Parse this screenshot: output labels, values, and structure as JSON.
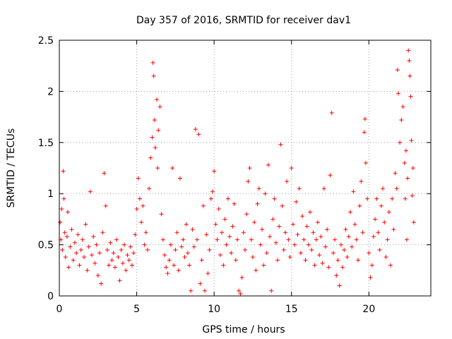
{
  "chart_data": {
    "type": "scatter",
    "title": "Day 357 of 2016, SRMTID for receiver dav1",
    "xlabel": "GPS time / hours",
    "ylabel": "SRMTID / TECUs",
    "xlim": [
      0,
      24
    ],
    "ylim": [
      0,
      2.5
    ],
    "xticks": [
      0,
      5,
      10,
      15,
      20
    ],
    "xtick_labels": [
      "0",
      "5",
      "10",
      "15",
      "20"
    ],
    "yticks": [
      0,
      0.5,
      1,
      1.5,
      2,
      2.5
    ],
    "ytick_labels": [
      "0",
      "0.5",
      "1",
      "1.5",
      "2",
      "2.5"
    ],
    "grid": true,
    "marker": "+",
    "color": "#ff0000",
    "series": [
      {
        "name": "SRMTID",
        "points": [
          [
            0.05,
            0.72
          ],
          [
            0.1,
            0.55
          ],
          [
            0.15,
            0.85
          ],
          [
            0.2,
            0.45
          ],
          [
            0.25,
            1.22
          ],
          [
            0.3,
            0.95
          ],
          [
            0.35,
            0.62
          ],
          [
            0.4,
            0.38
          ],
          [
            0.5,
            0.58
          ],
          [
            0.55,
            0.82
          ],
          [
            0.6,
            0.28
          ],
          [
            0.7,
            0.48
          ],
          [
            0.8,
            0.65
          ],
          [
            0.9,
            0.35
          ],
          [
            1.0,
            0.52
          ],
          [
            1.1,
            0.42
          ],
          [
            1.2,
            0.6
          ],
          [
            1.3,
            0.3
          ],
          [
            1.4,
            0.45
          ],
          [
            1.5,
            0.55
          ],
          [
            1.6,
            0.38
          ],
          [
            1.7,
            0.7
          ],
          [
            1.8,
            0.25
          ],
          [
            1.9,
            0.48
          ],
          [
            2.0,
            1.02
          ],
          [
            2.1,
            0.4
          ],
          [
            2.2,
            0.58
          ],
          [
            2.3,
            0.32
          ],
          [
            2.4,
            0.5
          ],
          [
            2.5,
            0.2
          ],
          [
            2.6,
            0.42
          ],
          [
            2.7,
            0.12
          ],
          [
            2.8,
            0.62
          ],
          [
            2.9,
            1.2
          ],
          [
            3.0,
            0.88
          ],
          [
            3.1,
            0.45
          ],
          [
            3.2,
            0.3
          ],
          [
            3.3,
            0.52
          ],
          [
            3.4,
            0.35
          ],
          [
            3.5,
            0.42
          ],
          [
            3.6,
            0.28
          ],
          [
            3.7,
            0.55
          ],
          [
            3.8,
            0.38
          ],
          [
            3.9,
            0.15
          ],
          [
            4.0,
            0.45
          ],
          [
            4.1,
            0.32
          ],
          [
            4.2,
            0.5
          ],
          [
            4.3,
            0.25
          ],
          [
            4.4,
            0.4
          ],
          [
            4.5,
            0.35
          ],
          [
            4.6,
            0.48
          ],
          [
            4.7,
            0.3
          ],
          [
            4.8,
            0.42
          ],
          [
            4.9,
            0.6
          ],
          [
            5.0,
            0.85
          ],
          [
            5.1,
            1.15
          ],
          [
            5.2,
            0.95
          ],
          [
            5.3,
            0.72
          ],
          [
            5.4,
            0.88
          ],
          [
            5.5,
            0.5
          ],
          [
            5.6,
            0.62
          ],
          [
            5.7,
            0.45
          ],
          [
            5.8,
            1.05
          ],
          [
            5.9,
            1.35
          ],
          [
            6.0,
            1.55
          ],
          [
            6.05,
            2.28
          ],
          [
            6.1,
            2.15
          ],
          [
            6.15,
            1.72
          ],
          [
            6.2,
            1.45
          ],
          [
            6.3,
            1.92
          ],
          [
            6.35,
            1.25
          ],
          [
            6.4,
            1.62
          ],
          [
            6.5,
            1.85
          ],
          [
            6.6,
            0.8
          ],
          [
            6.7,
            0.55
          ],
          [
            6.8,
            0.4
          ],
          [
            6.9,
            0.28
          ],
          [
            7.0,
            0.22
          ],
          [
            7.1,
            0.35
          ],
          [
            7.2,
            0.5
          ],
          [
            7.3,
            1.25
          ],
          [
            7.4,
            0.3
          ],
          [
            7.5,
            0.45
          ],
          [
            7.6,
            0.62
          ],
          [
            7.7,
            0.25
          ],
          [
            7.8,
            1.15
          ],
          [
            7.9,
            0.48
          ],
          [
            8.0,
            0.55
          ],
          [
            8.1,
            0.38
          ],
          [
            8.2,
            0.7
          ],
          [
            8.3,
            0.42
          ],
          [
            8.4,
            0.3
          ],
          [
            8.5,
            0.05
          ],
          [
            8.6,
            0.65
          ],
          [
            8.7,
            0.48
          ],
          [
            8.8,
            1.63
          ],
          [
            8.9,
            0.55
          ],
          [
            9.0,
            1.58
          ],
          [
            9.1,
            0.12
          ],
          [
            9.2,
            0.35
          ],
          [
            9.3,
            0.88
          ],
          [
            9.4,
            0.05
          ],
          [
            9.5,
            0.6
          ],
          [
            9.6,
            0.22
          ],
          [
            9.7,
            0.45
          ],
          [
            9.8,
            0.95
          ],
          [
            9.9,
            1.02
          ],
          [
            10.0,
            1.22
          ],
          [
            10.1,
            0.7
          ],
          [
            10.2,
            0.55
          ],
          [
            10.3,
            0.85
          ],
          [
            10.4,
            0.4
          ],
          [
            10.5,
            0.62
          ],
          [
            10.6,
            0.3
          ],
          [
            10.7,
            0.75
          ],
          [
            10.8,
            0.5
          ],
          [
            10.9,
            0.95
          ],
          [
            11.0,
            0.58
          ],
          [
            11.1,
            0.42
          ],
          [
            11.2,
            0.68
          ],
          [
            11.3,
            0.9
          ],
          [
            11.4,
            0.35
          ],
          [
            11.5,
            0.55
          ],
          [
            11.6,
            0.05
          ],
          [
            11.7,
            0.02
          ],
          [
            11.8,
            0.18
          ],
          [
            11.9,
            0.62
          ],
          [
            12.0,
            0.45
          ],
          [
            12.1,
            0.8
          ],
          [
            12.2,
            1.12
          ],
          [
            12.3,
            1.25
          ],
          [
            12.4,
            0.55
          ],
          [
            12.5,
            0.38
          ],
          [
            12.6,
            0.72
          ],
          [
            12.7,
            0.25
          ],
          [
            12.8,
            0.9
          ],
          [
            12.9,
            1.05
          ],
          [
            13.0,
            0.5
          ],
          [
            13.1,
            0.65
          ],
          [
            13.2,
            0.3
          ],
          [
            13.3,
            1.0
          ],
          [
            13.4,
            0.42
          ],
          [
            13.5,
            1.28
          ],
          [
            13.6,
            0.58
          ],
          [
            13.7,
            0.05
          ],
          [
            13.8,
            0.75
          ],
          [
            13.9,
            0.95
          ],
          [
            14.0,
            0.52
          ],
          [
            14.1,
            0.35
          ],
          [
            14.2,
            0.68
          ],
          [
            14.3,
            1.48
          ],
          [
            14.4,
            0.88
          ],
          [
            14.5,
            0.45
          ],
          [
            14.6,
            0.62
          ],
          [
            14.7,
            1.12
          ],
          [
            14.8,
            0.55
          ],
          [
            14.9,
            0.38
          ],
          [
            15.0,
            1.25
          ],
          [
            15.1,
            0.7
          ],
          [
            15.2,
            0.5
          ],
          [
            15.3,
            0.92
          ],
          [
            15.4,
            0.6
          ],
          [
            15.5,
            1.05
          ],
          [
            15.6,
            0.42
          ],
          [
            15.7,
            0.78
          ],
          [
            15.8,
            0.55
          ],
          [
            15.9,
            0.35
          ],
          [
            16.0,
            0.68
          ],
          [
            16.1,
            0.5
          ],
          [
            16.2,
            0.82
          ],
          [
            16.3,
            0.45
          ],
          [
            16.4,
            0.62
          ],
          [
            16.5,
            0.3
          ],
          [
            16.6,
            0.55
          ],
          [
            16.7,
            0.72
          ],
          [
            16.8,
            0.4
          ],
          [
            16.9,
            0.58
          ],
          [
            17.0,
            0.32
          ],
          [
            17.1,
            1.05
          ],
          [
            17.2,
            0.48
          ],
          [
            17.3,
            0.65
          ],
          [
            17.4,
            0.28
          ],
          [
            17.5,
            1.18
          ],
          [
            17.6,
            1.79
          ],
          [
            17.7,
            0.42
          ],
          [
            17.8,
            0.55
          ],
          [
            17.9,
            0.2
          ],
          [
            18.0,
            0.35
          ],
          [
            18.1,
            0.1
          ],
          [
            18.2,
            0.5
          ],
          [
            18.3,
            0.28
          ],
          [
            18.4,
            0.45
          ],
          [
            18.5,
            0.65
          ],
          [
            18.6,
            0.38
          ],
          [
            18.7,
            0.58
          ],
          [
            18.8,
            0.82
          ],
          [
            18.9,
            0.48
          ],
          [
            19.0,
            1.02
          ],
          [
            19.1,
            0.7
          ],
          [
            19.2,
            0.55
          ],
          [
            19.3,
            0.35
          ],
          [
            19.4,
            0.88
          ],
          [
            19.5,
            1.12
          ],
          [
            19.6,
            0.62
          ],
          [
            19.7,
            1.6
          ],
          [
            19.75,
            1.73
          ],
          [
            19.8,
            1.3
          ],
          [
            19.9,
            0.95
          ],
          [
            20.0,
            0.42
          ],
          [
            20.1,
            0.18
          ],
          [
            20.2,
            0.3
          ],
          [
            20.3,
            0.58
          ],
          [
            20.4,
            0.75
          ],
          [
            20.5,
            0.95
          ],
          [
            20.6,
            0.62
          ],
          [
            20.7,
            0.45
          ],
          [
            20.8,
            0.88
          ],
          [
            20.9,
            1.05
          ],
          [
            21.0,
            0.72
          ],
          [
            21.1,
            0.38
          ],
          [
            21.2,
            0.55
          ],
          [
            21.3,
            0.82
          ],
          [
            21.4,
            0.3
          ],
          [
            21.5,
            0.95
          ],
          [
            21.6,
            0.65
          ],
          [
            21.7,
            1.2
          ],
          [
            21.8,
            1.05
          ],
          [
            21.85,
            2.21
          ],
          [
            21.9,
            1.98
          ],
          [
            22.0,
            1.5
          ],
          [
            22.1,
            1.72
          ],
          [
            22.2,
            1.85
          ],
          [
            22.3,
            1.3
          ],
          [
            22.35,
            0.95
          ],
          [
            22.4,
            1.42
          ],
          [
            22.45,
            0.55
          ],
          [
            22.5,
            1.15
          ],
          [
            22.55,
            2.4
          ],
          [
            22.6,
            2.3
          ],
          [
            22.65,
            2.15
          ],
          [
            22.7,
            1.95
          ],
          [
            22.75,
            1.52
          ],
          [
            22.8,
            0.98
          ],
          [
            22.85,
            1.25
          ],
          [
            22.9,
            0.72
          ]
        ]
      }
    ]
  }
}
